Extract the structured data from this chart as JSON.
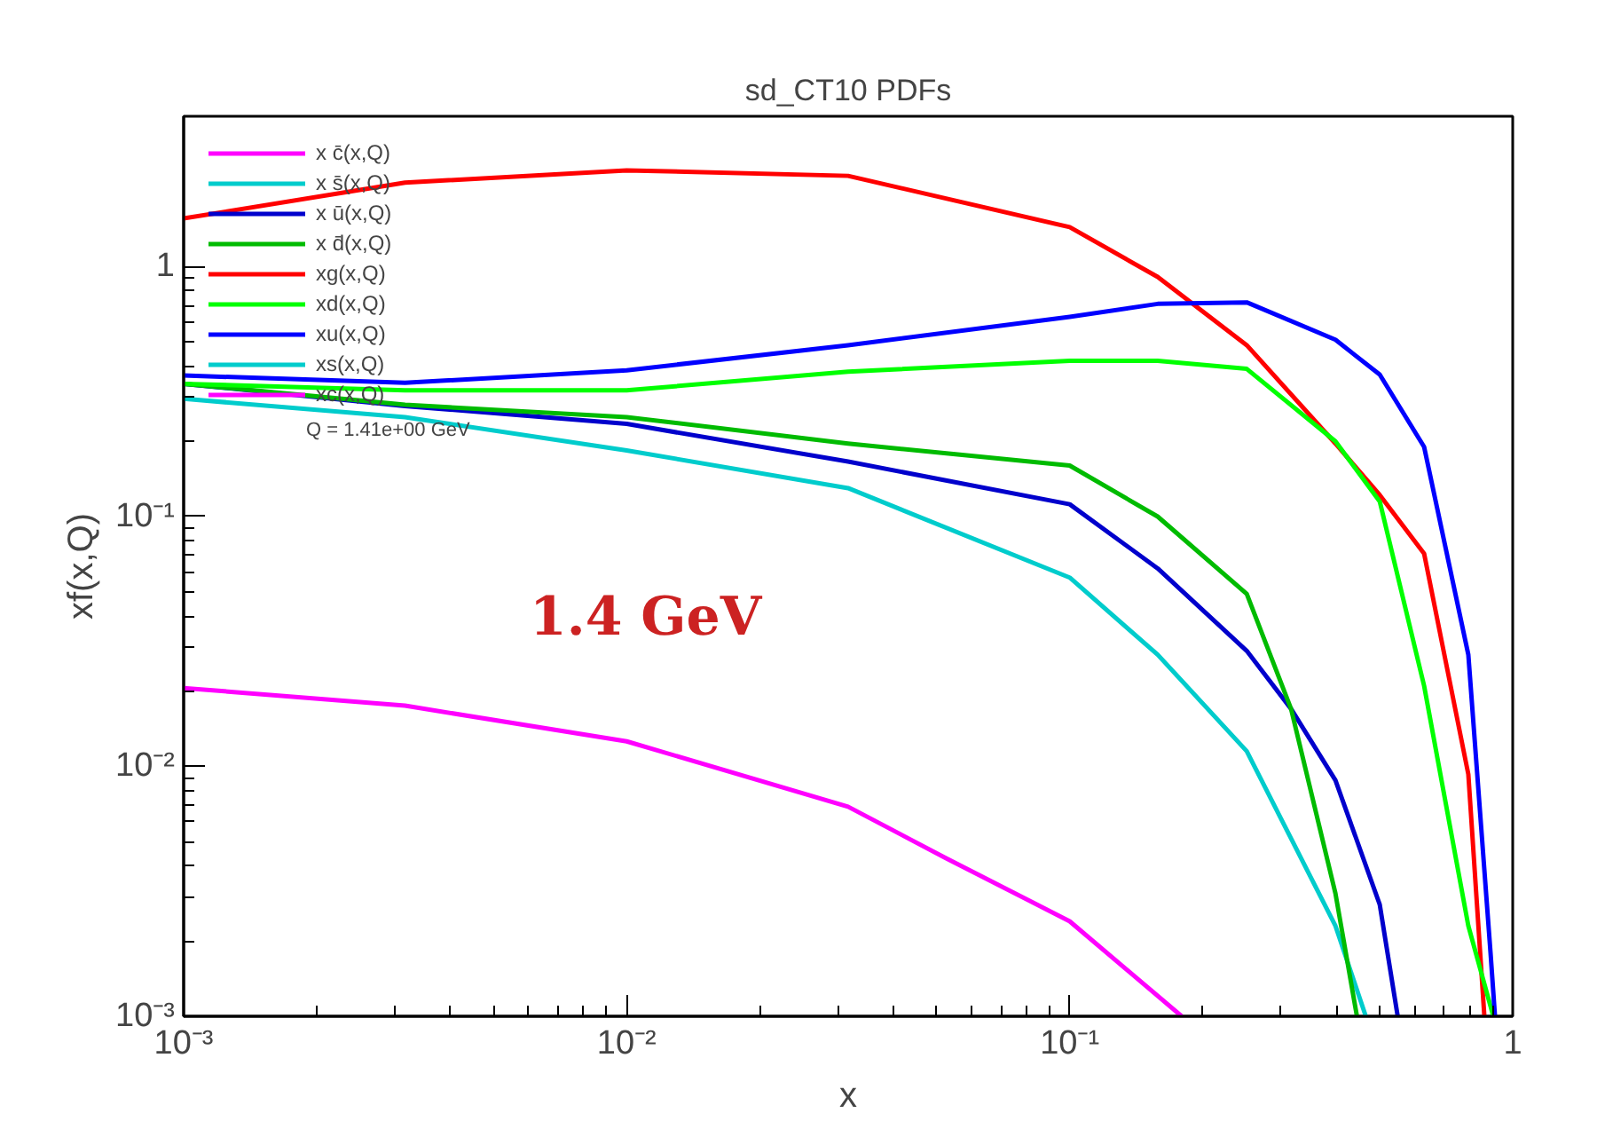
{
  "chart_data": {
    "type": "line",
    "title": "sd_CT10 PDFs",
    "xlabel": "x",
    "ylabel": "xf(x,Q)",
    "log": "xy",
    "xlim": [
      0.001,
      1
    ],
    "ylim": [
      0.001,
      4
    ],
    "xticks": [
      {
        "value": 0.001,
        "label": "10⁻³"
      },
      {
        "value": 0.01,
        "label": "10⁻²"
      },
      {
        "value": 0.1,
        "label": "10⁻¹"
      },
      1
    ],
    "yticks": [
      {
        "value": 0.001,
        "label": "10⁻³"
      },
      {
        "value": 0.01,
        "label": "10⁻²"
      },
      {
        "value": 0.1,
        "label": "10⁻¹"
      },
      1
    ],
    "grid": false,
    "legend": "top left",
    "line_style": "solid",
    "marker": "none",
    "annotations": [
      "Q = 1.41e+00 GeV",
      "1.4 GeV"
    ],
    "series": [
      {
        "name": "x c̄(x,Q)",
        "color": "#ff00ff",
        "x": [
          0.001,
          0.00316,
          0.01,
          0.0316,
          0.0525,
          0.1,
          0.179
        ],
        "values": [
          0.0206,
          0.0175,
          0.0126,
          0.0069,
          0.0043,
          0.0024,
          0.001
        ]
      },
      {
        "name": "x s̄(x,Q)",
        "color": "#00cccc",
        "x": [
          0.001,
          0.00316,
          0.01,
          0.0316,
          0.1,
          0.158,
          0.251,
          0.398,
          0.466
        ],
        "values": [
          0.296,
          0.25,
          0.184,
          0.13,
          0.057,
          0.028,
          0.0115,
          0.0023,
          0.001
        ]
      },
      {
        "name": "x ū(x,Q)",
        "color": "#0000cc",
        "x": [
          0.001,
          0.00316,
          0.01,
          0.0316,
          0.1,
          0.158,
          0.251,
          0.316,
          0.398,
          0.501,
          0.55
        ],
        "values": [
          0.34,
          0.277,
          0.235,
          0.166,
          0.112,
          0.062,
          0.029,
          0.017,
          0.0088,
          0.0028,
          0.001
        ]
      },
      {
        "name": "x d̄(x,Q)",
        "color": "#00bb00",
        "x": [
          0.001,
          0.00316,
          0.01,
          0.0316,
          0.1,
          0.158,
          0.251,
          0.316,
          0.398,
          0.445
        ],
        "values": [
          0.34,
          0.28,
          0.25,
          0.196,
          0.16,
          0.1,
          0.049,
          0.017,
          0.0031,
          0.001
        ]
      },
      {
        "name": "xg(x,Q)",
        "color": "#ff0000",
        "x": [
          0.001,
          0.00316,
          0.01,
          0.0316,
          0.1,
          0.158,
          0.251,
          0.398,
          0.501,
          0.631,
          0.794,
          0.863
        ],
        "values": [
          1.56,
          2.17,
          2.43,
          2.31,
          1.44,
          0.91,
          0.485,
          0.196,
          0.122,
          0.071,
          0.0093,
          0.001
        ]
      },
      {
        "name": "xd(x,Q)",
        "color": "#00ff00",
        "x": [
          0.001,
          0.00316,
          0.01,
          0.0316,
          0.1,
          0.158,
          0.251,
          0.398,
          0.501,
          0.631,
          0.794,
          0.904
        ],
        "values": [
          0.34,
          0.32,
          0.32,
          0.38,
          0.42,
          0.42,
          0.39,
          0.2,
          0.115,
          0.021,
          0.0023,
          0.001
        ]
      },
      {
        "name": "xu(x,Q)",
        "color": "#0000ff",
        "x": [
          0.001,
          0.00316,
          0.01,
          0.0316,
          0.1,
          0.158,
          0.251,
          0.398,
          0.501,
          0.631,
          0.794,
          0.891,
          0.912
        ],
        "values": [
          0.367,
          0.343,
          0.385,
          0.485,
          0.63,
          0.71,
          0.72,
          0.51,
          0.37,
          0.19,
          0.028,
          0.0018,
          0.001
        ]
      },
      {
        "name": "xs(x,Q)",
        "color": "#00cccc"
      },
      {
        "name": "xc(x,Q)",
        "color": "#ff00ff"
      }
    ]
  }
}
